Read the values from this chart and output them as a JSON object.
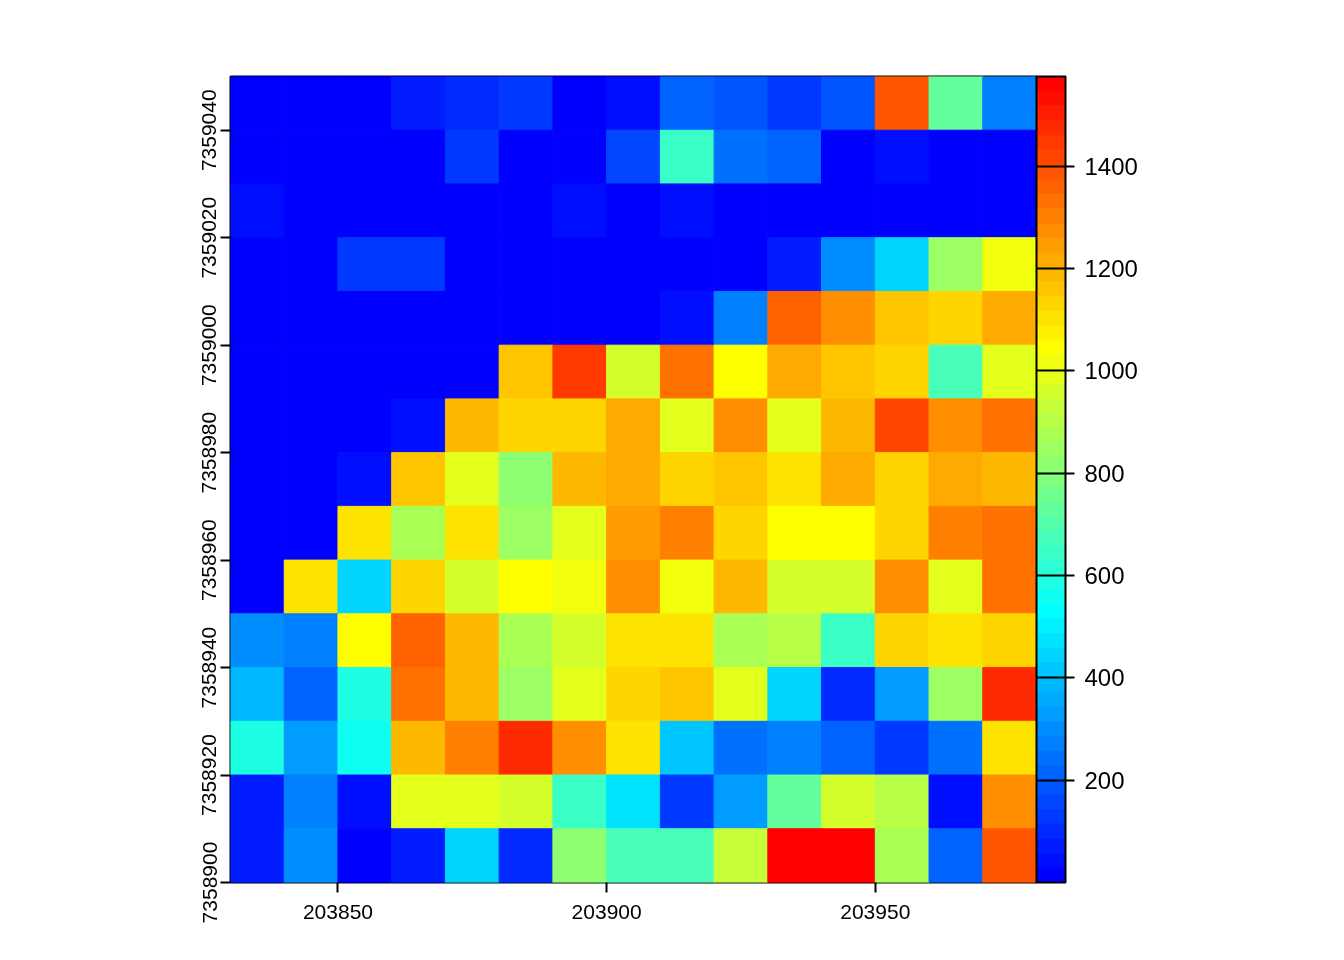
{
  "chart_data": {
    "type": "heatmap",
    "xlim": [
      203830,
      203980
    ],
    "ylim": [
      7358900,
      7359050
    ],
    "xticks": [
      203850,
      203900,
      203950
    ],
    "yticks": [
      7358900,
      7358920,
      7358940,
      7358960,
      7358980,
      7359000,
      7359020,
      7359040
    ],
    "clim": [
      0,
      1575
    ],
    "cticks": [
      200,
      400,
      600,
      800,
      1000,
      1200,
      1400
    ],
    "cells": [
      [
        10,
        10,
        10,
        70,
        100,
        130,
        10,
        30,
        210,
        180,
        120,
        180,
        1390,
        720,
        270
      ],
      [
        10,
        10,
        10,
        10,
        120,
        10,
        10,
        150,
        650,
        230,
        210,
        10,
        30,
        10,
        10
      ],
      [
        50,
        10,
        10,
        10,
        10,
        10,
        30,
        10,
        50,
        10,
        10,
        10,
        10,
        10,
        10
      ],
      [
        10,
        10,
        120,
        120,
        10,
        10,
        10,
        10,
        10,
        10,
        70,
        300,
        450,
        840,
        1030
      ],
      [
        10,
        10,
        10,
        10,
        10,
        10,
        10,
        10,
        50,
        260,
        1360,
        1260,
        1160,
        1130,
        1230
      ],
      [
        10,
        10,
        10,
        10,
        10,
        1160,
        1440,
        970,
        1330,
        1050,
        1230,
        1160,
        1130,
        670,
        990
      ],
      [
        10,
        10,
        10,
        30,
        1200,
        1130,
        1130,
        1230,
        990,
        1260,
        990,
        1200,
        1430,
        1260,
        1330
      ],
      [
        10,
        10,
        30,
        1160,
        990,
        810,
        1200,
        1230,
        1130,
        1160,
        1100,
        1210,
        1130,
        1230,
        1200
      ],
      [
        10,
        10,
        1100,
        870,
        1100,
        840,
        990,
        1250,
        1300,
        1130,
        1050,
        1050,
        1130,
        1300,
        1330
      ],
      [
        10,
        1110,
        450,
        1130,
        970,
        1050,
        1030,
        1260,
        1030,
        1200,
        970,
        970,
        1260,
        990,
        1330
      ],
      [
        300,
        280,
        1050,
        1360,
        1200,
        870,
        970,
        1100,
        1100,
        870,
        900,
        650,
        1130,
        1100,
        1130
      ],
      [
        380,
        210,
        590,
        1330,
        1200,
        840,
        990,
        1130,
        1160,
        990,
        450,
        100,
        330,
        840,
        1480
      ],
      [
        590,
        330,
        550,
        1200,
        1300,
        1480,
        1260,
        1100,
        410,
        230,
        280,
        210,
        120,
        250,
        1100
      ],
      [
        70,
        260,
        30,
        990,
        990,
        970,
        650,
        480,
        130,
        330,
        740,
        970,
        900,
        30,
        1260
      ],
      [
        70,
        300,
        10,
        70,
        450,
        100,
        810,
        670,
        670,
        940,
        1570,
        1570,
        870,
        210,
        1390
      ]
    ]
  }
}
